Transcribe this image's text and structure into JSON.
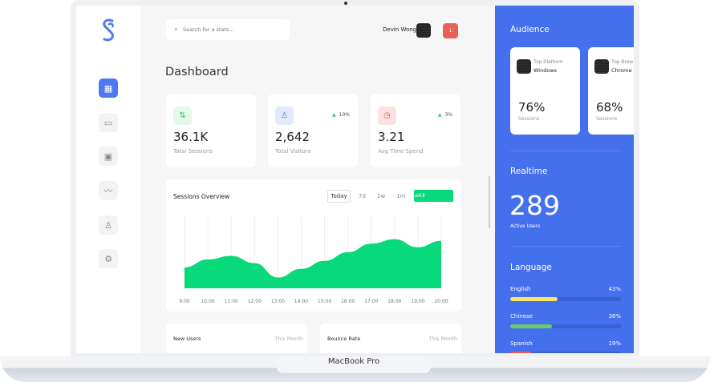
{
  "search": {
    "placeholder": "Search for a stats..."
  },
  "user": {
    "name": "Devin Wong",
    "notifications": "1"
  },
  "page_title": "Dashboard",
  "stats": [
    {
      "value": "36.1K",
      "label": "Total Sessions",
      "change": "",
      "icon": "arrows-up-down-icon",
      "color": "#2ecc71"
    },
    {
      "value": "2,642",
      "label": "Total Visitors",
      "change": "10%",
      "icon": "user-icon",
      "color": "#4f79ef"
    },
    {
      "value": "3.21",
      "label": "Avg Time Spend",
      "change": "3%",
      "icon": "clock-icon",
      "color": "#e74c3c"
    }
  ],
  "chart_data": {
    "type": "area",
    "title": "Sessions Overview",
    "categories": [
      "9:00",
      "10:00",
      "11:00",
      "12:00",
      "13:00",
      "14:00",
      "15:00",
      "16:00",
      "17:00",
      "18:00",
      "19:00",
      "20:00"
    ],
    "values": [
      29,
      40,
      45,
      35,
      15,
      27,
      38,
      50,
      62,
      68,
      57,
      66
    ],
    "color": "#08d97a",
    "grid": "vertical"
  },
  "chart_tabs": [
    "Today",
    "7d",
    "2w",
    "1m"
  ],
  "download_label": "ad",
  "bottom_cards": [
    {
      "title": "New Users",
      "period": "This Month"
    },
    {
      "title": "Bounce Rate",
      "period": "This Month"
    }
  ],
  "audience": {
    "title": "Audience",
    "cards": [
      {
        "caption": "Top Platform",
        "name": "Windows",
        "value": "76%",
        "label": "Sessions"
      },
      {
        "caption": "Top Brow",
        "name": "Chrome",
        "value": "68%",
        "label": "Sessions"
      }
    ]
  },
  "realtime": {
    "title": "Realtime",
    "value": "289",
    "label": "Active Users"
  },
  "language": {
    "title": "Language",
    "items": [
      {
        "name": "English",
        "pct": "43%",
        "value": 43,
        "color": "#fde36b"
      },
      {
        "name": "Chinese",
        "pct": "38%",
        "value": 38,
        "color": "#6cc96a"
      },
      {
        "name": "Spanish",
        "pct": "19%",
        "value": 19,
        "color": "#ea5a4a"
      }
    ]
  },
  "device_label": "MacBook Pro",
  "colors": {
    "accent": "#4470ee",
    "green": "#08d97a",
    "badge": "#e8605a"
  }
}
